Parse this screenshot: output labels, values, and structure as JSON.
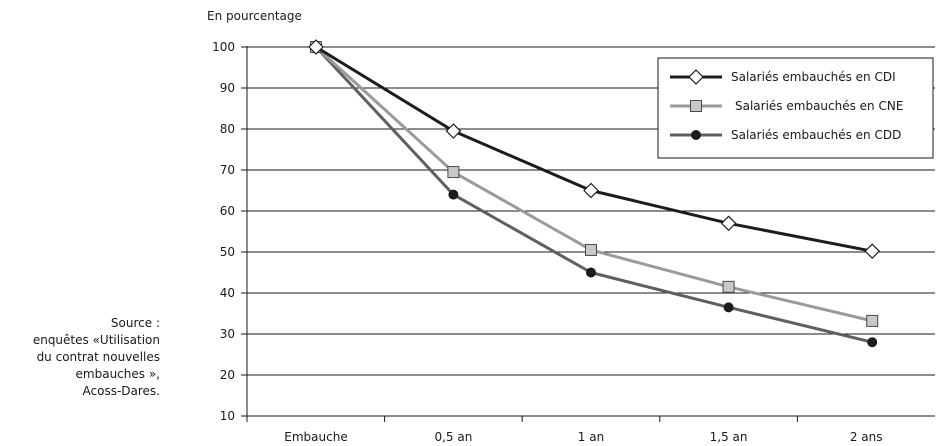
{
  "chart_data": {
    "type": "line",
    "title": "",
    "ylabel": "En pourcentage",
    "xlabel": "",
    "categories": [
      "Embauche",
      "0,5 an",
      "1 an",
      "1,5 an",
      "2 ans"
    ],
    "ylim": [
      10,
      100
    ],
    "yticks": [
      10,
      20,
      30,
      40,
      50,
      60,
      70,
      80,
      90,
      100
    ],
    "grid": true,
    "legend_position": "top-right",
    "series": [
      {
        "name": "Salariés embauchés en CDI",
        "marker": "diamond",
        "color": "#1c1c1c",
        "values": [
          100,
          79.5,
          65,
          57,
          50.2
        ]
      },
      {
        "name": "Salariés embauchés en CNE",
        "marker": "square",
        "color": "#9a9a9a",
        "values": [
          100,
          69.5,
          50.5,
          41.5,
          33.2
        ]
      },
      {
        "name": "Salariés embauchés en CDD",
        "marker": "circle",
        "color": "#5f5f5f",
        "values": [
          100,
          64,
          45,
          36.5,
          28
        ]
      }
    ]
  },
  "source_lines": [
    "Source :",
    "enquêtes «Utilisation",
    "du contrat nouvelles",
    "embauches »,",
    "Acoss-Dares."
  ]
}
